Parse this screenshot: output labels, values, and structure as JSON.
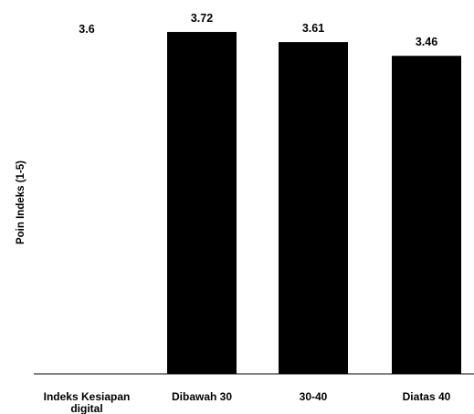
{
  "chart_data": {
    "type": "bar",
    "ylabel": "Poin Indeks (1-5)",
    "categories": [
      "Indeks Kesiapan digital",
      "Dibawah 30",
      "30-40",
      "Diatas 40"
    ],
    "category_lines": [
      [
        "Indeks Kesiapan",
        "digital"
      ],
      [
        "Dibawah 30"
      ],
      [
        "30-40"
      ],
      [
        "Diatas 40"
      ]
    ],
    "values": [
      3.6,
      3.72,
      3.61,
      3.46
    ],
    "data_labels": [
      "3.6",
      "3.72",
      "3.61",
      "3.46"
    ],
    "bar_visible": [
      false,
      true,
      true,
      true
    ],
    "bar_color": "#000000",
    "grid": false,
    "legend": "none"
  }
}
